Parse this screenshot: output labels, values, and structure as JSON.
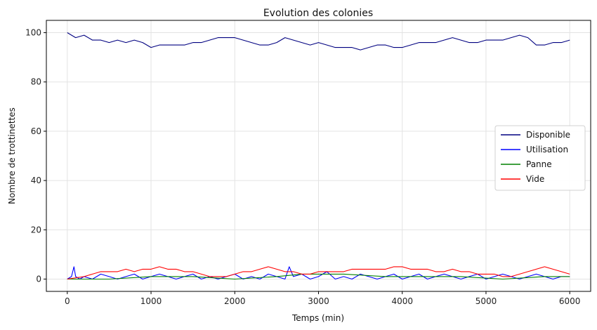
{
  "chart_data": {
    "type": "line",
    "title": "Evolution des colonies",
    "xlabel": "Temps (min)",
    "ylabel": "Nombre de trottinettes",
    "xlim": [
      -250,
      6250
    ],
    "ylim": [
      -5,
      105
    ],
    "x_ticks": [
      0,
      1000,
      2000,
      3000,
      4000,
      5000,
      6000
    ],
    "y_ticks": [
      0,
      20,
      40,
      60,
      80,
      100
    ],
    "grid": true,
    "legend_position": "center-right",
    "series": [
      {
        "name": "Disponible",
        "color": "#000080",
        "x": [
          0,
          100,
          200,
          300,
          400,
          500,
          600,
          700,
          800,
          900,
          1000,
          1100,
          1200,
          1300,
          1400,
          1500,
          1600,
          1700,
          1800,
          1900,
          2000,
          2100,
          2200,
          2300,
          2400,
          2500,
          2600,
          2700,
          2800,
          2900,
          3000,
          3100,
          3200,
          3300,
          3400,
          3500,
          3600,
          3700,
          3800,
          3900,
          4000,
          4100,
          4200,
          4300,
          4400,
          4500,
          4600,
          4700,
          4800,
          4900,
          5000,
          5100,
          5200,
          5300,
          5400,
          5500,
          5600,
          5700,
          5800,
          5900,
          6000
        ],
        "values": [
          100,
          98,
          99,
          97,
          97,
          96,
          97,
          96,
          97,
          96,
          94,
          95,
          95,
          95,
          95,
          96,
          96,
          97,
          98,
          98,
          98,
          97,
          96,
          95,
          95,
          96,
          98,
          97,
          96,
          95,
          96,
          95,
          94,
          94,
          94,
          93,
          94,
          95,
          95,
          94,
          94,
          95,
          96,
          96,
          96,
          97,
          98,
          97,
          96,
          96,
          97,
          97,
          97,
          98,
          99,
          98,
          95,
          95,
          96,
          96,
          97
        ]
      },
      {
        "name": "Utilisation",
        "color": "#0000ff",
        "x": [
          0,
          50,
          80,
          100,
          150,
          200,
          300,
          400,
          500,
          600,
          700,
          800,
          900,
          1000,
          1100,
          1200,
          1300,
          1400,
          1500,
          1600,
          1700,
          1800,
          1900,
          2000,
          2100,
          2200,
          2300,
          2400,
          2500,
          2600,
          2650,
          2700,
          2800,
          2900,
          3000,
          3100,
          3200,
          3300,
          3400,
          3500,
          3600,
          3700,
          3800,
          3900,
          4000,
          4100,
          4200,
          4300,
          4400,
          4500,
          4600,
          4700,
          4800,
          4900,
          5000,
          5100,
          5200,
          5300,
          5400,
          5500,
          5600,
          5700,
          5800,
          5900,
          6000
        ],
        "values": [
          0,
          1,
          5,
          1,
          0,
          1,
          0,
          2,
          1,
          0,
          1,
          2,
          0,
          1,
          2,
          1,
          0,
          1,
          2,
          0,
          1,
          0,
          1,
          2,
          0,
          1,
          0,
          2,
          1,
          0,
          5,
          1,
          2,
          0,
          1,
          3,
          0,
          1,
          0,
          2,
          1,
          0,
          1,
          2,
          0,
          1,
          2,
          0,
          1,
          2,
          1,
          0,
          1,
          2,
          0,
          1,
          2,
          1,
          0,
          1,
          2,
          1,
          0,
          1,
          1
        ]
      },
      {
        "name": "Panne",
        "color": "#008000",
        "x": [
          0,
          500,
          1000,
          1500,
          2000,
          2500,
          2800,
          3300,
          3800,
          4200,
          4700,
          5200,
          5700,
          6000
        ],
        "values": [
          0,
          0,
          1,
          1,
          0,
          1,
          2,
          2,
          1,
          1,
          1,
          0,
          1,
          1
        ]
      },
      {
        "name": "Vide",
        "color": "#ff0000",
        "x": [
          0,
          200,
          300,
          400,
          500,
          600,
          700,
          800,
          900,
          1000,
          1100,
          1200,
          1300,
          1400,
          1500,
          1600,
          1700,
          1800,
          1900,
          2000,
          2100,
          2200,
          2300,
          2400,
          2500,
          2600,
          2700,
          2800,
          2900,
          3000,
          3100,
          3200,
          3300,
          3400,
          3500,
          3600,
          3700,
          3800,
          3900,
          4000,
          4100,
          4200,
          4300,
          4400,
          4500,
          4600,
          4700,
          4800,
          4900,
          5000,
          5100,
          5200,
          5300,
          5400,
          5500,
          5600,
          5700,
          5800,
          5900,
          6000
        ],
        "values": [
          0,
          1,
          2,
          3,
          3,
          3,
          4,
          3,
          4,
          4,
          5,
          4,
          4,
          3,
          3,
          2,
          1,
          1,
          1,
          2,
          3,
          3,
          4,
          5,
          4,
          3,
          3,
          2,
          2,
          3,
          3,
          3,
          3,
          4,
          4,
          4,
          4,
          4,
          5,
          5,
          4,
          4,
          4,
          3,
          3,
          4,
          3,
          3,
          2,
          2,
          2,
          1,
          1,
          2,
          3,
          4,
          5,
          4,
          3,
          2
        ]
      }
    ]
  }
}
